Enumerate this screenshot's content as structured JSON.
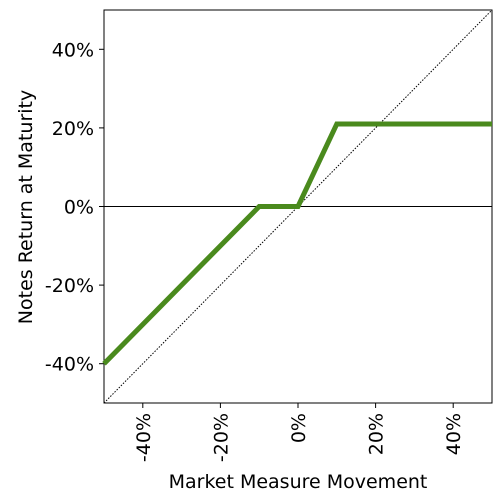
{
  "chart_data": {
    "type": "line",
    "x_label": "Market Measure Movement",
    "y_label": "Notes Return at Maturity",
    "x": [
      -50,
      -10,
      0,
      10,
      50
    ],
    "series": [
      {
        "color": "#4a8a1d",
        "values": [
          -40,
          0,
          0,
          21,
          21
        ]
      }
    ],
    "reference_line": {
      "x": [
        -50,
        50
      ],
      "y": [
        -50,
        50
      ],
      "style": "dotted"
    },
    "hline": 0,
    "xlim": [
      -50,
      50
    ],
    "ylim": [
      -50,
      50
    ],
    "xticks": [
      {
        "value": -40,
        "label": "-40%"
      },
      {
        "value": -20,
        "label": "-20%"
      },
      {
        "value": 0,
        "label": "0%"
      },
      {
        "value": 20,
        "label": "20%"
      },
      {
        "value": 40,
        "label": "40%"
      }
    ],
    "yticks": [
      {
        "value": -40,
        "label": "-40%"
      },
      {
        "value": -20,
        "label": "-20%"
      },
      {
        "value": 0,
        "label": "0%"
      },
      {
        "value": 20,
        "label": "20%"
      },
      {
        "value": 40,
        "label": "40%"
      }
    ],
    "grid": false
  }
}
